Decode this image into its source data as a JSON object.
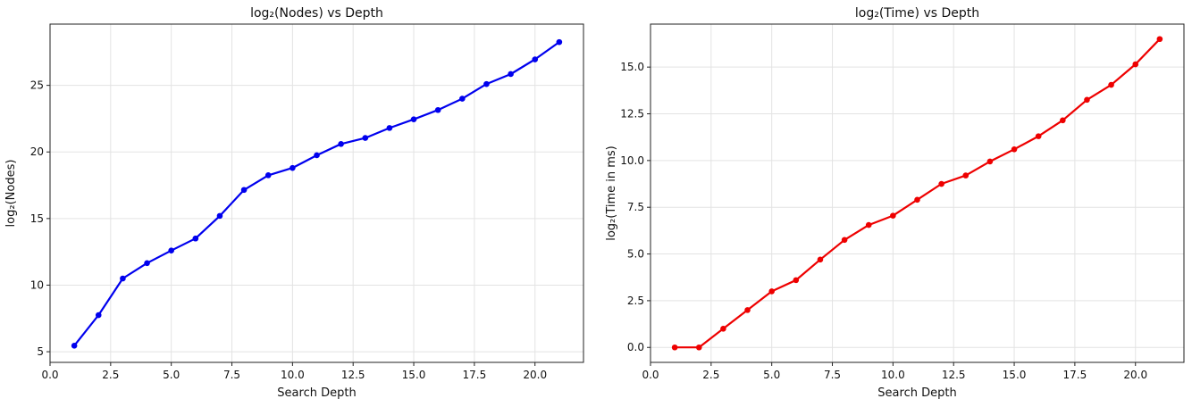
{
  "chart_data": [
    {
      "type": "line",
      "title": "log₂(Nodes) vs Depth",
      "xlabel": "Search Depth",
      "ylabel": "log₂(Nodes)",
      "xlim": [
        0,
        22
      ],
      "ylim": [
        4.2,
        29.6
      ],
      "xticks": [
        0,
        2.5,
        5,
        7.5,
        10,
        12.5,
        15,
        17.5,
        20
      ],
      "xtick_labels": [
        "0.0",
        "2.5",
        "5.0",
        "7.5",
        "10.0",
        "12.5",
        "15.0",
        "17.5",
        "20.0"
      ],
      "yticks": [
        5,
        10,
        15,
        20,
        25
      ],
      "ytick_labels": [
        "5",
        "10",
        "15",
        "20",
        "25"
      ],
      "grid": true,
      "color": "#0000ee",
      "series": [
        {
          "x": [
            1,
            2,
            3,
            4,
            5,
            6,
            7,
            8,
            9,
            10,
            11,
            12,
            13,
            14,
            15,
            16,
            17,
            18,
            19,
            20,
            21
          ],
          "y": [
            5.45,
            7.75,
            10.5,
            11.65,
            12.6,
            13.5,
            15.2,
            17.15,
            18.25,
            18.8,
            19.75,
            20.6,
            21.05,
            21.8,
            22.45,
            23.15,
            24.0,
            25.1,
            25.85,
            26.95,
            28.25
          ]
        }
      ]
    },
    {
      "type": "line",
      "title": "log₂(Time) vs Depth",
      "xlabel": "Search Depth",
      "ylabel": "log₂(Time in ms)",
      "xlim": [
        0,
        22
      ],
      "ylim": [
        -0.8,
        17.3
      ],
      "xticks": [
        0,
        2.5,
        5,
        7.5,
        10,
        12.5,
        15,
        17.5,
        20
      ],
      "xtick_labels": [
        "0.0",
        "2.5",
        "5.0",
        "7.5",
        "10.0",
        "12.5",
        "15.0",
        "17.5",
        "20.0"
      ],
      "yticks": [
        0,
        2.5,
        5,
        7.5,
        10,
        12.5,
        15
      ],
      "ytick_labels": [
        "0.0",
        "2.5",
        "5.0",
        "7.5",
        "10.0",
        "12.5",
        "15.0"
      ],
      "grid": true,
      "color": "#ee0000",
      "series": [
        {
          "x": [
            1,
            2,
            3,
            4,
            5,
            6,
            7,
            8,
            9,
            10,
            11,
            12,
            13,
            14,
            15,
            16,
            17,
            18,
            19,
            20,
            21
          ],
          "y": [
            0.0,
            0.0,
            1.0,
            2.0,
            3.0,
            3.6,
            4.7,
            5.75,
            6.55,
            7.05,
            7.9,
            8.75,
            9.2,
            9.95,
            10.6,
            11.3,
            12.15,
            13.25,
            14.05,
            15.15,
            16.5
          ]
        }
      ]
    }
  ]
}
